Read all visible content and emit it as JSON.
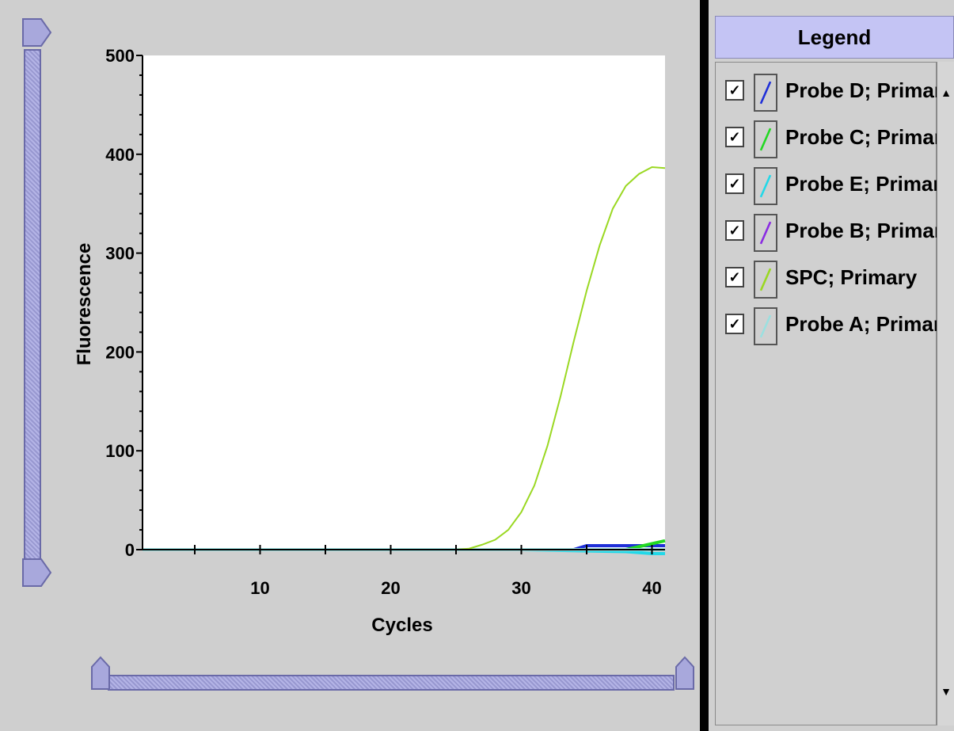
{
  "legend": {
    "title": "Legend",
    "items": [
      {
        "label": "Probe D; Primary",
        "checked": true,
        "check_glyph": "✓",
        "color": "#1f2fd8"
      },
      {
        "label": "Probe C; Primary",
        "checked": true,
        "check_glyph": "✓",
        "color": "#22d822"
      },
      {
        "label": "Probe E; Primary",
        "checked": true,
        "check_glyph": "✓",
        "color": "#22d8e8"
      },
      {
        "label": "Probe B; Primary",
        "checked": true,
        "check_glyph": "✓",
        "color": "#8a2be2"
      },
      {
        "label": "SPC; Primary",
        "checked": true,
        "check_glyph": "✓",
        "color": "#9ad822"
      },
      {
        "label": "Probe A; Primary",
        "checked": true,
        "check_glyph": "✓",
        "color": "#9be0e0"
      }
    ],
    "scroll_up_icon": "arrow-up-icon",
    "scroll_down_icon": "arrow-down-icon"
  },
  "chart_data": {
    "type": "line",
    "title": "",
    "xlabel": "Cycles",
    "ylabel": "Fluorescence",
    "xlim": [
      1,
      41
    ],
    "ylim": [
      0,
      500
    ],
    "x_ticks": [
      10,
      20,
      30,
      40
    ],
    "y_ticks": [
      0,
      100,
      200,
      300,
      400,
      500
    ],
    "grid": false,
    "legend_position": "right panel",
    "series": [
      {
        "name": "SPC; Primary",
        "color": "#9ad822",
        "x": [
          1,
          5,
          10,
          15,
          20,
          25,
          26,
          27,
          28,
          29,
          30,
          31,
          32,
          33,
          34,
          35,
          36,
          37,
          38,
          39,
          40,
          41
        ],
        "y": [
          0,
          0,
          0,
          0,
          0,
          0,
          1,
          5,
          10,
          20,
          38,
          65,
          105,
          155,
          210,
          262,
          308,
          345,
          368,
          380,
          387,
          386
        ]
      },
      {
        "name": "Probe D; Primary",
        "color": "#1f2fd8",
        "x": [
          1,
          10,
          20,
          30,
          34,
          35,
          40,
          41
        ],
        "y": [
          0,
          0,
          0,
          0,
          0,
          4,
          4,
          4
        ]
      },
      {
        "name": "Probe C; Primary",
        "color": "#22d822",
        "x": [
          1,
          10,
          20,
          30,
          38,
          39,
          40,
          41
        ],
        "y": [
          0,
          0,
          0,
          0,
          0,
          3,
          6,
          9
        ]
      },
      {
        "name": "Probe E; Primary",
        "color": "#22d8e8",
        "x": [
          1,
          10,
          20,
          30,
          38,
          39,
          40,
          41
        ],
        "y": [
          0,
          0,
          0,
          0,
          -2,
          -3,
          -4,
          -4
        ]
      },
      {
        "name": "Probe B; Primary",
        "color": "#8a2be2",
        "x": [
          1,
          10,
          20,
          30,
          40,
          41
        ],
        "y": [
          0,
          0,
          0,
          0,
          0,
          0
        ]
      },
      {
        "name": "Probe A; Primary",
        "color": "#9be0e0",
        "x": [
          1,
          10,
          20,
          30,
          40,
          41
        ],
        "y": [
          0,
          0,
          0,
          0,
          0,
          0
        ]
      }
    ]
  }
}
